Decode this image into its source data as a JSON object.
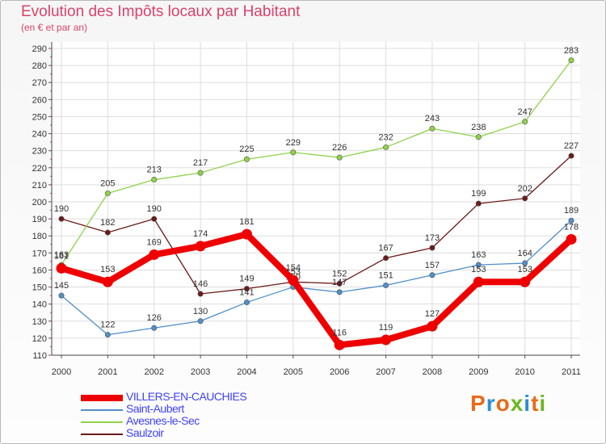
{
  "title": "Evolution des Impôts locaux par Habitant",
  "subtitle": "(en € et par an)",
  "logo": {
    "letters": [
      "P",
      "r",
      "o",
      "x",
      "i",
      "t",
      "i"
    ],
    "colors": [
      "#e86b1a",
      "#2a8fd4",
      "#e86b1a",
      "#6ab820",
      "#2a8fd4",
      "#e86b1a",
      "#6ab820"
    ]
  },
  "chart_data": {
    "type": "line",
    "title": "Evolution des Impôts locaux par Habitant",
    "subtitle": "(en € et par an)",
    "xlabel": "",
    "ylabel": "",
    "categories": [
      "2000",
      "2001",
      "2002",
      "2003",
      "2004",
      "2005",
      "2006",
      "2007",
      "2008",
      "2009",
      "2010",
      "2011"
    ],
    "ylim": [
      110,
      290
    ],
    "yticks": [
      110,
      120,
      130,
      140,
      150,
      160,
      170,
      180,
      190,
      200,
      210,
      220,
      230,
      240,
      250,
      260,
      270,
      280,
      290
    ],
    "grid": true,
    "series": [
      {
        "name": "VILLERS-EN-CAUCHIES",
        "color": "#ee0000",
        "values": [
          161,
          153,
          169,
          174,
          181,
          154,
          116,
          119,
          127,
          153,
          153,
          178
        ]
      },
      {
        "name": "Saint-Aubert",
        "color": "#4f8fc9",
        "values": [
          145,
          122,
          126,
          130,
          141,
          150,
          147,
          151,
          157,
          163,
          164,
          189
        ]
      },
      {
        "name": "Avesnes-le-Sec",
        "color": "#8fd24a",
        "values": [
          163,
          205,
          213,
          217,
          225,
          229,
          226,
          232,
          243,
          238,
          247,
          283
        ]
      },
      {
        "name": "Saulzoir",
        "color": "#6b1a1a",
        "values": [
          190,
          182,
          190,
          146,
          149,
          153,
          152,
          167,
          173,
          199,
          202,
          227
        ]
      }
    ]
  }
}
